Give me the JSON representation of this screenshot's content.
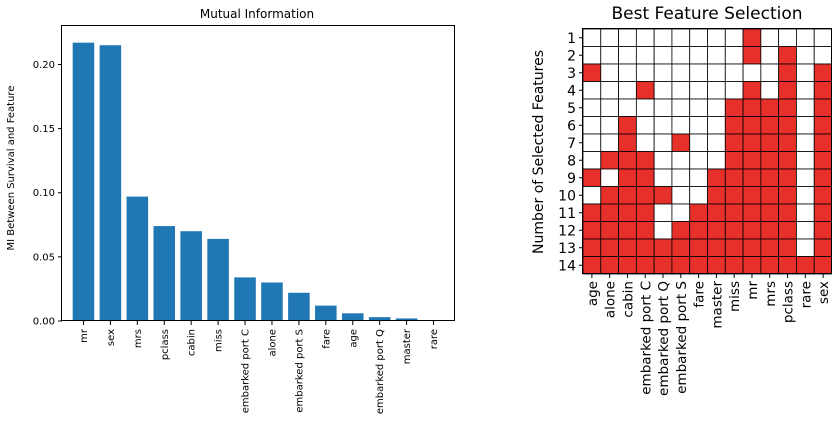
{
  "chart_data": [
    {
      "type": "bar",
      "title": "Mutual Information",
      "xlabel": "",
      "ylabel": "MI Between Survival and Feature",
      "ylim": [
        0,
        0.23
      ],
      "yticks": [
        0.0,
        0.05,
        0.1,
        0.15,
        0.2
      ],
      "ytick_labels": [
        "0.00",
        "0.05",
        "0.10",
        "0.15",
        "0.20"
      ],
      "categories": [
        "mr",
        "sex",
        "mrs",
        "pclass",
        "cabin",
        "miss",
        "embarked port C",
        "alone",
        "embarked port S",
        "fare",
        "age",
        "embarked port Q",
        "master",
        "rare"
      ],
      "values": [
        0.217,
        0.215,
        0.097,
        0.074,
        0.07,
        0.064,
        0.034,
        0.03,
        0.022,
        0.012,
        0.006,
        0.003,
        0.002,
        0.0
      ],
      "color": "#1f77b4",
      "grid": false
    },
    {
      "type": "heatmap",
      "title": "Best Feature Selection",
      "xlabel": "",
      "ylabel": "Number of Selected Features",
      "x_categories": [
        "age",
        "alone",
        "cabin",
        "embarked port C",
        "embarked port Q",
        "embarked port S",
        "fare",
        "master",
        "miss",
        "mr",
        "mrs",
        "pclass",
        "rare",
        "sex"
      ],
      "y_categories": [
        "1",
        "2",
        "3",
        "4",
        "5",
        "6",
        "7",
        "8",
        "9",
        "10",
        "11",
        "12",
        "13",
        "14"
      ],
      "selected": [
        [
          0,
          0,
          0,
          0,
          0,
          0,
          0,
          0,
          0,
          1,
          0,
          0,
          0,
          0
        ],
        [
          0,
          0,
          0,
          0,
          0,
          0,
          0,
          0,
          0,
          1,
          0,
          1,
          0,
          0
        ],
        [
          1,
          0,
          0,
          0,
          0,
          0,
          0,
          0,
          0,
          0,
          0,
          1,
          0,
          1
        ],
        [
          0,
          0,
          0,
          1,
          0,
          0,
          0,
          0,
          0,
          1,
          0,
          1,
          0,
          1
        ],
        [
          0,
          0,
          0,
          0,
          0,
          0,
          0,
          0,
          1,
          1,
          1,
          1,
          0,
          1
        ],
        [
          0,
          0,
          1,
          0,
          0,
          0,
          0,
          0,
          1,
          1,
          1,
          1,
          0,
          1
        ],
        [
          0,
          0,
          1,
          0,
          0,
          1,
          0,
          0,
          1,
          1,
          1,
          1,
          0,
          1
        ],
        [
          0,
          1,
          1,
          1,
          0,
          0,
          0,
          0,
          1,
          1,
          1,
          1,
          0,
          1
        ],
        [
          1,
          0,
          1,
          1,
          0,
          0,
          0,
          1,
          1,
          1,
          1,
          1,
          0,
          1
        ],
        [
          0,
          1,
          1,
          1,
          1,
          0,
          0,
          1,
          1,
          1,
          1,
          1,
          0,
          1
        ],
        [
          1,
          1,
          1,
          1,
          0,
          0,
          1,
          1,
          1,
          1,
          1,
          1,
          0,
          1
        ],
        [
          1,
          1,
          1,
          1,
          0,
          1,
          1,
          1,
          1,
          1,
          1,
          1,
          0,
          1
        ],
        [
          1,
          1,
          1,
          1,
          1,
          1,
          1,
          1,
          1,
          1,
          1,
          1,
          0,
          1
        ],
        [
          1,
          1,
          1,
          1,
          1,
          1,
          1,
          1,
          1,
          1,
          1,
          1,
          1,
          1
        ]
      ],
      "selected_color": "#e8302a",
      "unselected_color": "#ffffff",
      "grid": true
    }
  ]
}
